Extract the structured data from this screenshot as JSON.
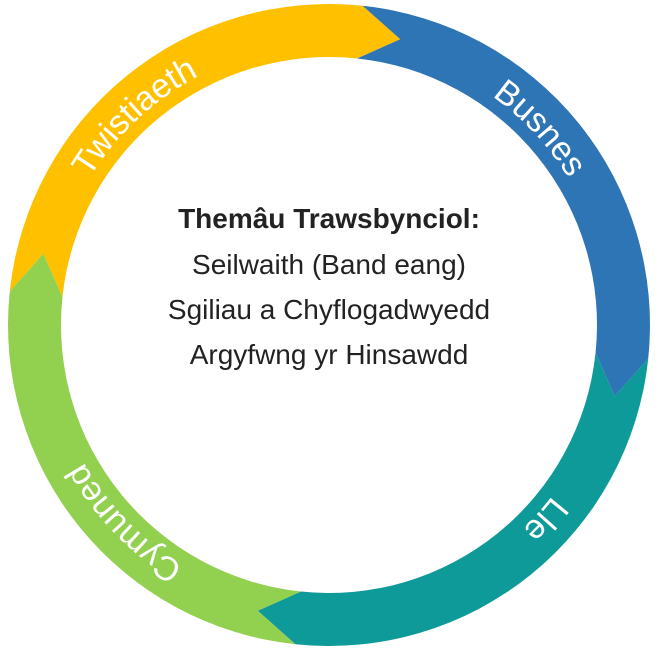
{
  "segments": [
    {
      "label": "Twistiaeth",
      "color": "#FFC000"
    },
    {
      "label": "Busnes",
      "color": "#2E75B6"
    },
    {
      "label": "Lle",
      "color": "#0F9A9A"
    },
    {
      "label": "Cymuned",
      "color": "#92D050"
    }
  ],
  "center": {
    "title": "Themâu Trawsbynciol:",
    "lines": [
      "Seilwaith (Band eang)",
      "Sgiliau a Chyflogadwyedd",
      "Argyfwng yr Hinsawdd"
    ]
  }
}
